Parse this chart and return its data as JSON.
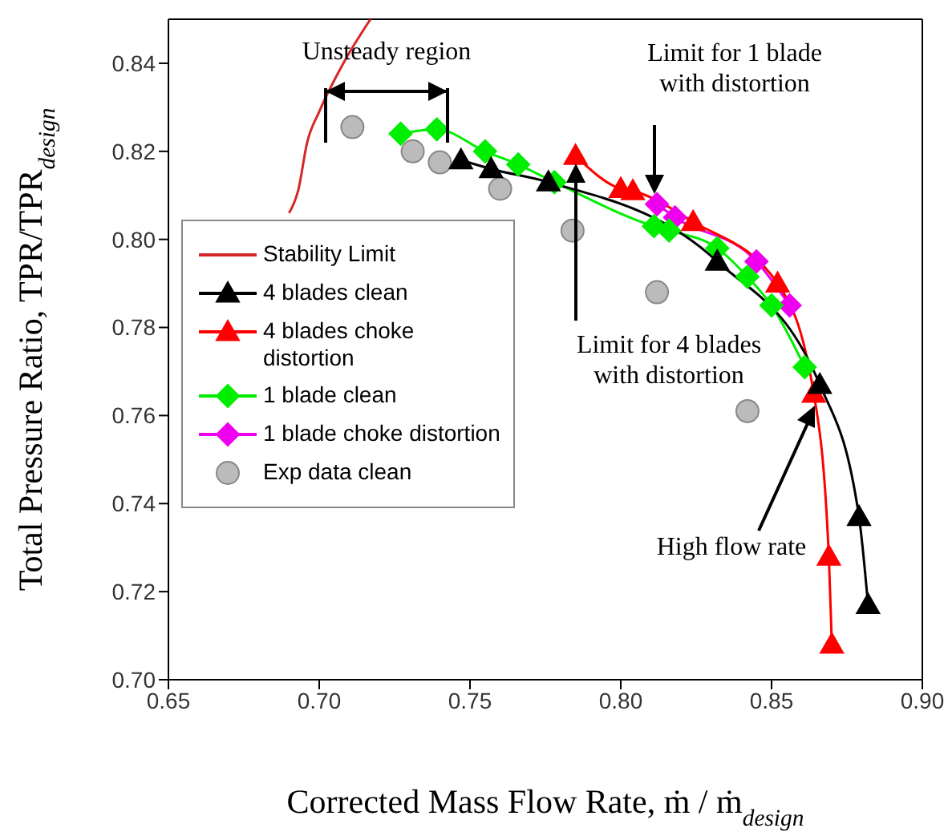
{
  "chart_data": {
    "type": "line",
    "xlabel": "Corrected Mass Flow Rate, ṁ / ṁ$_{design}$",
    "ylabel": "Total Pressure Ratio, TPR/TPR$_{design}$",
    "xlim": [
      0.65,
      0.9
    ],
    "xticks": [
      {
        "value": 0.65,
        "label": "0.65"
      },
      {
        "value": 0.7,
        "label": "0.70"
      },
      {
        "value": 0.75,
        "label": "0.75"
      },
      {
        "value": 0.8,
        "label": "0.80"
      },
      {
        "value": 0.85,
        "label": "0.85"
      },
      {
        "value": 0.9,
        "label": "0.90"
      }
    ],
    "ylim": [
      0.7,
      0.85
    ],
    "yticks": [
      {
        "value": 0.7,
        "label": "0.70"
      },
      {
        "value": 0.72,
        "label": "0.72"
      },
      {
        "value": 0.74,
        "label": "0.74"
      },
      {
        "value": 0.76,
        "label": "0.76"
      },
      {
        "value": 0.78,
        "label": "0.78"
      },
      {
        "value": 0.8,
        "label": "0.80"
      },
      {
        "value": 0.82,
        "label": "0.82"
      },
      {
        "value": 0.84,
        "label": "0.84"
      }
    ],
    "grid": false,
    "legend": "left",
    "series": [
      {
        "name": "Stability Limit",
        "marker": "none",
        "color": "#d62728",
        "x": [
          0.69,
          0.693,
          0.696,
          0.7,
          0.708,
          0.717
        ],
        "values": [
          0.806,
          0.811,
          0.822,
          0.829,
          0.84,
          0.85
        ]
      },
      {
        "name": "4 blades clean",
        "marker": "triangle",
        "color": "#000000",
        "x": [
          0.747,
          0.757,
          0.776,
          0.832,
          0.866,
          0.879,
          0.882
        ],
        "values": [
          0.818,
          0.816,
          0.813,
          0.795,
          0.767,
          0.737,
          0.717
        ]
      },
      {
        "name": "4 blades choke distortion",
        "marker": "triangle",
        "color": "#ff0000",
        "x": [
          0.785,
          0.8,
          0.804,
          0.824,
          0.852,
          0.864,
          0.869,
          0.87
        ],
        "values": [
          0.819,
          0.8115,
          0.811,
          0.804,
          0.79,
          0.765,
          0.728,
          0.708
        ]
      },
      {
        "name": "1 blade clean",
        "marker": "diamond",
        "color": "#00ee00",
        "x": [
          0.727,
          0.739,
          0.755,
          0.766,
          0.778,
          0.811,
          0.816,
          0.832,
          0.842,
          0.85,
          0.861
        ],
        "values": [
          0.824,
          0.825,
          0.82,
          0.817,
          0.813,
          0.803,
          0.802,
          0.798,
          0.7915,
          0.785,
          0.771
        ]
      },
      {
        "name": "1 blade choke distortion",
        "marker": "diamond",
        "color": "#ee00ee",
        "x": [
          0.812,
          0.818,
          0.845,
          0.856
        ],
        "values": [
          0.808,
          0.805,
          0.795,
          0.785
        ]
      },
      {
        "name": "Exp data clean",
        "type": "scatter",
        "marker": "circle",
        "color": "#bbbbbb",
        "x": [
          0.711,
          0.731,
          0.74,
          0.76,
          0.784,
          0.812,
          0.842
        ],
        "values": [
          0.8255,
          0.82,
          0.8175,
          0.8115,
          0.802,
          0.788,
          0.761
        ]
      }
    ],
    "annotations": [
      "Unsteady region",
      "Limit for 1 blade with distortion",
      "Limit for 4 blades with distortion",
      "High flow rate"
    ]
  }
}
